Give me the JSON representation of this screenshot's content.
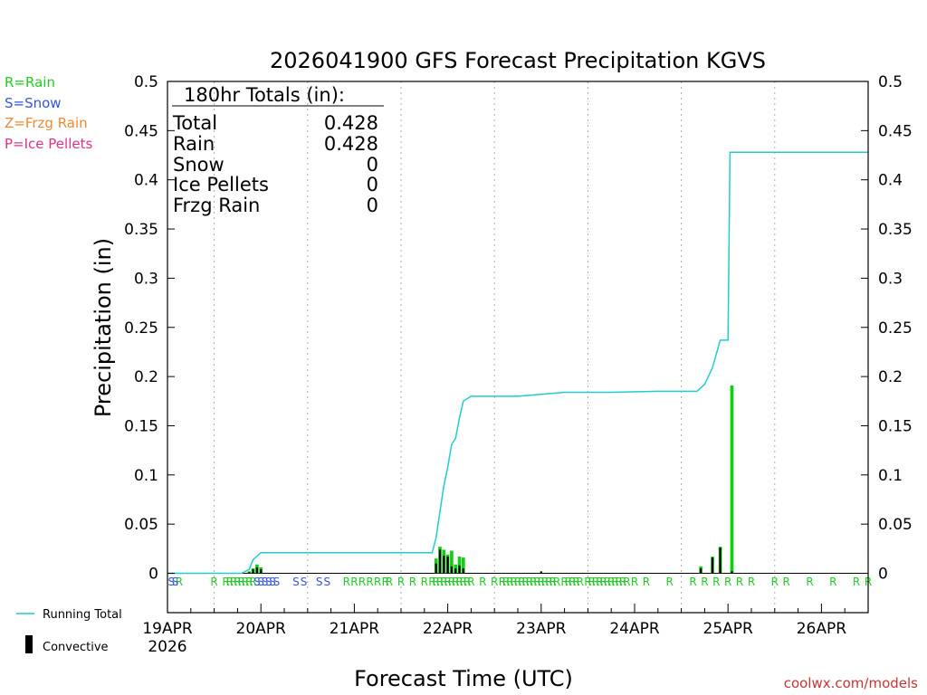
{
  "chart_data": {
    "type": "bar",
    "title": "2026041900 GFS Forecast Precipitation KGVS",
    "xlabel": "Forecast Time (UTC)",
    "ylabel": "Precipitation (in)",
    "ylim": [
      -0.04,
      0.5
    ],
    "xlim_hours": [
      0,
      180
    ],
    "yticks": [
      {
        "value": 0.5,
        "label": "0.5"
      },
      {
        "value": 0.45,
        "label": "0.45"
      },
      {
        "value": 0.4,
        "label": "0.4"
      },
      {
        "value": 0.35,
        "label": "0.35"
      },
      {
        "value": 0.3,
        "label": "0.3"
      },
      {
        "value": 0.25,
        "label": "0.25"
      },
      {
        "value": 0.2,
        "label": "0.2"
      },
      {
        "value": 0.15,
        "label": "0.15"
      },
      {
        "value": 0.1,
        "label": "0.1"
      },
      {
        "value": 0.05,
        "label": "0.05"
      },
      {
        "value": 0,
        "label": "0"
      }
    ],
    "xticks": [
      {
        "hour": 0,
        "label": "19APR",
        "sublabel": "2026"
      },
      {
        "hour": 24,
        "label": "20APR"
      },
      {
        "hour": 48,
        "label": "21APR"
      },
      {
        "hour": 72,
        "label": "22APR"
      },
      {
        "hour": 96,
        "label": "23APR"
      },
      {
        "hour": 120,
        "label": "24APR"
      },
      {
        "hour": 144,
        "label": "25APR"
      },
      {
        "hour": 168,
        "label": "26APR"
      }
    ],
    "grid": "vertical-dotted",
    "totals": {
      "header": "180hr Totals (in):",
      "rows": [
        {
          "label": "Total",
          "value": "0.428"
        },
        {
          "label": "Rain",
          "value": "0.428"
        },
        {
          "label": "Snow",
          "value": "0"
        },
        {
          "label": "Ice Pellets",
          "value": "0"
        },
        {
          "label": "Frzg Rain",
          "value": "0"
        }
      ]
    },
    "ptype_legend": [
      {
        "label": "R=Rain",
        "color": "#22cc22"
      },
      {
        "label": "S=Snow",
        "color": "#3355dd"
      },
      {
        "label": "Z=Frzg Rain",
        "color": "#ee8833"
      },
      {
        "label": "P=Ice Pellets",
        "color": "#dd3388"
      }
    ],
    "series_legend": [
      {
        "label": "Running Total",
        "kind": "line",
        "color": "#22cccc"
      },
      {
        "label": "Convective",
        "kind": "bar",
        "color": "#000000"
      }
    ],
    "colors": {
      "rain": "#11cc11",
      "convective": "#000000",
      "running_total": "#22cccc",
      "snow": "#3355dd"
    },
    "series": [
      {
        "name": "Precipitation (total)",
        "kind": "bar",
        "hours": [
          21,
          22,
          23,
          24,
          69,
          70,
          71,
          72,
          73,
          74,
          75,
          76,
          137,
          140,
          142,
          145
        ],
        "values": [
          0.002,
          0.005,
          0.009,
          0.006,
          0.015,
          0.027,
          0.024,
          0.019,
          0.023,
          0.009,
          0.017,
          0.016,
          0.007,
          0.017,
          0.027,
          0.191
        ]
      },
      {
        "name": "Convective",
        "kind": "bar",
        "hours": [
          21,
          22,
          23,
          24,
          69,
          70,
          71,
          72,
          73,
          74,
          75,
          76,
          96,
          137,
          140,
          142,
          145
        ],
        "values": [
          0.001,
          0.004,
          0.006,
          0.004,
          0.01,
          0.024,
          0.018,
          0.017,
          0.007,
          0.005,
          0.008,
          0.005,
          0.002,
          0.005,
          0.016,
          0.026,
          0.002
        ]
      },
      {
        "name": "Running Total",
        "kind": "line",
        "hours": [
          0,
          19,
          21,
          22,
          24,
          48,
          68,
          69,
          70,
          71,
          72,
          73,
          74,
          75,
          76,
          78,
          90,
          96,
          102,
          114,
          126,
          136,
          138,
          140,
          142,
          144,
          144.5,
          146,
          180
        ],
        "values": [
          0,
          0,
          0.004,
          0.014,
          0.021,
          0.021,
          0.021,
          0.036,
          0.063,
          0.089,
          0.108,
          0.131,
          0.137,
          0.158,
          0.175,
          0.18,
          0.18,
          0.182,
          0.184,
          0.184,
          0.185,
          0.185,
          0.192,
          0.209,
          0.237,
          0.237,
          0.428,
          0.428,
          0.428
        ]
      }
    ],
    "ptype_row": {
      "rain_hours": [
        3,
        12,
        15,
        16,
        17,
        18,
        19,
        20,
        21,
        22,
        46,
        48,
        50,
        52,
        54,
        56,
        57,
        60,
        63,
        66,
        68,
        69,
        70,
        71,
        72,
        73,
        74,
        75,
        76,
        77,
        78,
        81,
        84,
        86,
        87,
        88,
        89,
        90,
        91,
        92,
        93,
        94,
        95,
        96,
        97,
        98,
        99,
        100,
        102,
        103,
        104,
        105,
        106,
        108,
        109,
        110,
        111,
        112,
        113,
        114,
        115,
        116,
        117,
        118,
        120,
        123,
        129,
        135,
        138,
        141,
        144,
        147,
        150,
        156,
        159,
        165,
        171,
        177,
        180
      ],
      "snow_hours": [
        1,
        2,
        23,
        24,
        25,
        26,
        27,
        28,
        33,
        35,
        39,
        41
      ],
      "rain_label": "R",
      "snow_label": "S"
    },
    "watermark": "coolwx.com/models"
  }
}
